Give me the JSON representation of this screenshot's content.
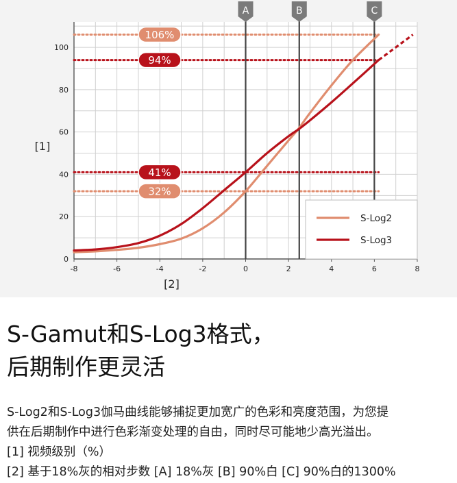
{
  "chart_data": {
    "type": "line",
    "xlabel": "[2]",
    "ylabel": "[1]",
    "xlim": [
      -8,
      8
    ],
    "ylim": [
      0,
      112
    ],
    "x_ticks": [
      -8,
      -6,
      -4,
      -2,
      0,
      2,
      4,
      6,
      8
    ],
    "y_ticks": [
      0,
      20,
      40,
      60,
      80,
      100
    ],
    "grid": true,
    "legend_position": "bottom-right",
    "series": [
      {
        "name": "S-Log2",
        "color": "#e08d6f",
        "x": [
          -8,
          -7,
          -6,
          -5,
          -4,
          -3,
          -2,
          -1,
          0,
          1,
          2,
          2.5,
          3,
          4,
          5,
          6.2
        ],
        "y": [
          3.2,
          3.6,
          4.3,
          5.3,
          7.0,
          9.6,
          14.5,
          22,
          32,
          44,
          56,
          62,
          69,
          82,
          94,
          106
        ]
      },
      {
        "name": "S-Log3",
        "color": "#b8121b",
        "x": [
          -8,
          -7,
          -6,
          -5,
          -4,
          -3,
          -2,
          -1,
          0,
          1,
          2,
          2.5,
          3,
          4,
          5,
          6.2
        ],
        "y": [
          4.0,
          4.5,
          5.6,
          7.5,
          11,
          16.5,
          24,
          32.5,
          41,
          50,
          58,
          61.5,
          65.5,
          74,
          83,
          94
        ]
      }
    ],
    "extension": {
      "series": "S-Log3",
      "x": [
        6.2,
        7.8
      ],
      "y": [
        94,
        106
      ]
    },
    "markers": [
      {
        "label": "A",
        "x": 0
      },
      {
        "label": "B",
        "x": 2.5
      },
      {
        "label": "C",
        "x": 6
      }
    ],
    "annotations": [
      {
        "label": "106%",
        "y": 106,
        "series": "S-Log2"
      },
      {
        "label": "94%",
        "y": 94,
        "series": "S-Log3"
      },
      {
        "label": "41%",
        "y": 41,
        "series": "S-Log3"
      },
      {
        "label": "32%",
        "y": 32,
        "series": "S-Log2"
      }
    ]
  },
  "heading": {
    "line1": "S-Gamut和S-Log3格式，",
    "line2": "后期制作更灵活"
  },
  "description": {
    "line1": "S-Log2和S-Log3伽马曲线能够捕捉更加宽广的色彩和亮度范围，为您提",
    "line2": "供在后期制作中进行色彩渐变处理的自由，同时尽可能地少高光溢出。",
    "line3": "[1] 视频级别（%）",
    "line4": "[2] 基于18%灰的相对步数 [A] 18%灰 [B] 90%白 [C] 90%白的1300%"
  }
}
